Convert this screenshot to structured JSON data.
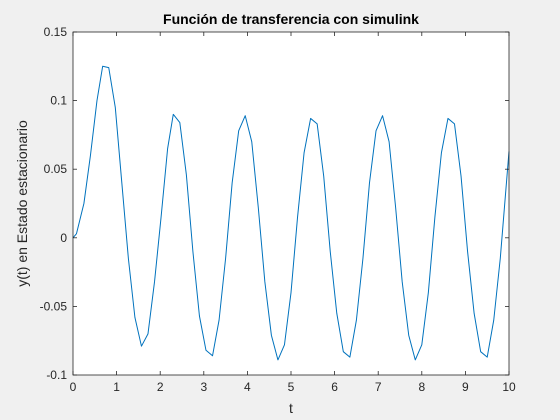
{
  "chart_data": {
    "type": "line",
    "title": "Función de transferencia con simulink",
    "xlabel": "t",
    "ylabel": "y(t) en Estado estacionario",
    "xlim": [
      0,
      10
    ],
    "ylim": [
      -0.1,
      0.15
    ],
    "xticks": [
      0,
      1,
      2,
      3,
      4,
      5,
      6,
      7,
      8,
      9,
      10
    ],
    "xtick_labels": [
      "0",
      "1",
      "2",
      "3",
      "4",
      "5",
      "6",
      "7",
      "8",
      "9",
      "10"
    ],
    "yticks": [
      -0.1,
      -0.05,
      0,
      0.05,
      0.1,
      0.15
    ],
    "ytick_labels": [
      "-0.1",
      "-0.05",
      "0",
      "0.05",
      "0.1",
      "0.15"
    ],
    "grid": false,
    "series": [
      {
        "name": "y(t)",
        "color": "#0072bd",
        "x": [
          0,
          0.08,
          0.25,
          0.4,
          0.55,
          0.68,
          0.82,
          0.97,
          1.12,
          1.27,
          1.42,
          1.57,
          1.72,
          1.87,
          2.02,
          2.17,
          2.3,
          2.45,
          2.6,
          2.75,
          2.9,
          3.05,
          3.2,
          3.35,
          3.5,
          3.65,
          3.8,
          3.95,
          4.1,
          4.25,
          4.4,
          4.55,
          4.7,
          4.85,
          5.0,
          5.15,
          5.3,
          5.45,
          5.6,
          5.75,
          5.9,
          6.05,
          6.2,
          6.35,
          6.5,
          6.65,
          6.8,
          6.95,
          7.1,
          7.25,
          7.4,
          7.55,
          7.7,
          7.85,
          8.0,
          8.15,
          8.3,
          8.45,
          8.6,
          8.75,
          8.9,
          9.05,
          9.2,
          9.35,
          9.5,
          9.65,
          9.8,
          10.0
        ],
        "y": [
          0,
          0.003,
          0.025,
          0.06,
          0.1,
          0.125,
          0.124,
          0.095,
          0.04,
          -0.015,
          -0.058,
          -0.079,
          -0.07,
          -0.032,
          0.015,
          0.065,
          0.09,
          0.084,
          0.046,
          -0.01,
          -0.057,
          -0.082,
          -0.086,
          -0.06,
          -0.015,
          0.04,
          0.078,
          0.089,
          0.07,
          0.022,
          -0.032,
          -0.071,
          -0.089,
          -0.078,
          -0.04,
          0.015,
          0.062,
          0.087,
          0.083,
          0.045,
          -0.01,
          -0.055,
          -0.083,
          -0.087,
          -0.06,
          -0.015,
          0.04,
          0.078,
          0.089,
          0.07,
          0.022,
          -0.032,
          -0.071,
          -0.089,
          -0.078,
          -0.04,
          0.015,
          0.062,
          0.087,
          0.083,
          0.045,
          -0.01,
          -0.055,
          -0.083,
          -0.087,
          -0.06,
          -0.015,
          0.063
        ]
      }
    ]
  }
}
